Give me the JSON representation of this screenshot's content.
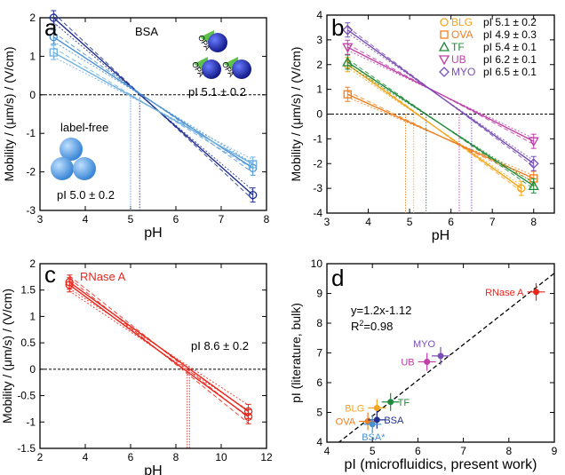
{
  "colors": {
    "bsa_dark": "#1f2f8f",
    "bsa_light": "#4a8fd0",
    "bsa_mid": "#6fb0e0",
    "blg": "#f2a51c",
    "ova": "#f07f1e",
    "tf": "#1f8a3a",
    "ub": "#c040a8",
    "myo": "#7a4fb5",
    "rnase": "#e8261c",
    "axis": "#000000"
  },
  "chart_data": [
    {
      "panel": "a",
      "type": "line",
      "annotation_title": "BSA",
      "xlabel": "pH",
      "ylabel": "Mobility / (μm/s) / (V/cm)",
      "xlim": [
        3,
        8
      ],
      "ylim": [
        -3,
        2
      ],
      "xticks": [
        "3",
        "4",
        "5",
        "6",
        "7",
        "8"
      ],
      "yticks": [
        "-3",
        "-2",
        "-1",
        "0",
        "1",
        "2"
      ],
      "insets": [
        {
          "label": "label-free",
          "pi": "pI 5.0 ± 0.2",
          "sphere_label": ""
        },
        {
          "label": "",
          "pi": "pI 5.1 ± 0.2",
          "sphere_label": "OPA"
        }
      ],
      "series": [
        {
          "color_key": "bsa_dark",
          "x": [
            3.3,
            7.7
          ],
          "y": [
            2.0,
            -2.6
          ],
          "crossing_ph": 5.2
        },
        {
          "color_key": "bsa_light",
          "x": [
            3.3,
            7.7
          ],
          "y": [
            1.5,
            -1.9
          ],
          "crossing_ph": 5.0
        },
        {
          "color_key": "bsa_mid",
          "x": [
            3.3,
            7.7
          ],
          "y": [
            1.1,
            -1.8
          ],
          "crossing_ph": 5.0
        }
      ]
    },
    {
      "panel": "b",
      "type": "line",
      "xlabel": "pH",
      "ylabel": "Mobility / (μm/s) / (V/cm)",
      "xlim": [
        3,
        8.5
      ],
      "ylim": [
        -4,
        4
      ],
      "xticks": [
        "3",
        "4",
        "5",
        "6",
        "7",
        "8"
      ],
      "yticks": [
        "-4",
        "-3",
        "-2",
        "-1",
        "0",
        "1",
        "2",
        "3",
        "4"
      ],
      "legend_position": "top-right",
      "legend": [
        {
          "name": "BLG",
          "pi": "pI 5.1 ± 0.2",
          "color_key": "blg",
          "marker": "○"
        },
        {
          "name": "OVA",
          "pi": "pI 4.9 ± 0.3",
          "color_key": "ova",
          "marker": "□"
        },
        {
          "name": "TF",
          "pi": "pI 5.4 ± 0.1",
          "color_key": "tf",
          "marker": "△"
        },
        {
          "name": "UB",
          "pi": "pI 6.2 ± 0.1",
          "color_key": "ub",
          "marker": "▽"
        },
        {
          "name": "MYO",
          "pi": "pI 6.5 ± 0.1",
          "color_key": "myo",
          "marker": "◇"
        }
      ],
      "series": [
        {
          "name": "BLG",
          "color_key": "blg",
          "x": [
            3.5,
            7.7
          ],
          "y": [
            2.0,
            -3.0
          ],
          "crossing_ph": 5.1
        },
        {
          "name": "OVA",
          "color_key": "ova",
          "x": [
            3.5,
            8.0
          ],
          "y": [
            0.8,
            -2.6
          ],
          "crossing_ph": 4.9
        },
        {
          "name": "TF",
          "color_key": "tf",
          "x": [
            3.5,
            8.0
          ],
          "y": [
            2.1,
            -2.9
          ],
          "crossing_ph": 5.4
        },
        {
          "name": "UB",
          "color_key": "ub",
          "x": [
            3.5,
            8.0
          ],
          "y": [
            2.7,
            -1.1
          ],
          "crossing_ph": 6.2
        },
        {
          "name": "MYO",
          "color_key": "myo",
          "x": [
            3.5,
            8.0
          ],
          "y": [
            3.4,
            -2.0
          ],
          "crossing_ph": 6.5
        }
      ]
    },
    {
      "panel": "c",
      "type": "line",
      "annotation_title": "RNase A",
      "annotation_pi": "pI 8.6 ± 0.2",
      "xlabel": "pH",
      "ylabel": "Mobility / (μm/s) / (V/cm)",
      "xlim": [
        2,
        12
      ],
      "ylim": [
        -1.5,
        2
      ],
      "xticks": [
        "2",
        "4",
        "6",
        "8",
        "10",
        "12"
      ],
      "yticks": [
        "-1.5",
        "-1",
        "-0.5",
        "0",
        "0.5",
        "1",
        "1.5",
        "2"
      ],
      "series": [
        {
          "color_key": "rnase",
          "x": [
            3.3,
            11.2
          ],
          "y": [
            1.65,
            -0.8
          ],
          "crossing_ph": 8.6
        },
        {
          "color_key": "rnase",
          "x": [
            3.3,
            11.2
          ],
          "y": [
            1.6,
            -0.9
          ],
          "crossing_ph": 8.5
        }
      ]
    },
    {
      "panel": "d",
      "type": "scatter",
      "xlabel": "pI (microfluidics, present work)",
      "ylabel": "pI (literature, bulk)",
      "xlim": [
        4,
        9
      ],
      "ylim": [
        4,
        10
      ],
      "xticks": [
        "4",
        "5",
        "6",
        "7",
        "8",
        "9"
      ],
      "yticks": [
        "4",
        "5",
        "6",
        "7",
        "8",
        "9",
        "10"
      ],
      "fit_equation": "y=1.2x-1.12",
      "fit_r2_prefix": "R",
      "fit_r2_sup": "2",
      "fit_r2_value": "=0.98",
      "fit": {
        "slope": 1.2,
        "intercept": -1.12
      },
      "points": [
        {
          "label": "RNase A",
          "x": 8.6,
          "y": 9.05,
          "color_key": "rnase",
          "label_side": "left"
        },
        {
          "label": "MYO",
          "x": 6.5,
          "y": 6.9,
          "color_key": "myo",
          "label_side": "above-left"
        },
        {
          "label": "UB",
          "x": 6.2,
          "y": 6.7,
          "color_key": "ub",
          "label_side": "left"
        },
        {
          "label": "TF",
          "x": 5.4,
          "y": 5.35,
          "color_key": "tf",
          "label_side": "right"
        },
        {
          "label": "BLG",
          "x": 5.1,
          "y": 5.15,
          "color_key": "blg",
          "label_side": "left"
        },
        {
          "label": "OVA",
          "x": 4.9,
          "y": 4.7,
          "color_key": "ova",
          "label_side": "left"
        },
        {
          "label": "BSA",
          "x": 5.1,
          "y": 4.75,
          "color_key": "bsa_dark",
          "label_side": "right"
        },
        {
          "label": "BSA*",
          "x": 5.0,
          "y": 4.6,
          "color_key": "bsa_light",
          "label_side": "below"
        }
      ]
    }
  ],
  "panel_letters": [
    "a",
    "b",
    "c",
    "d"
  ]
}
